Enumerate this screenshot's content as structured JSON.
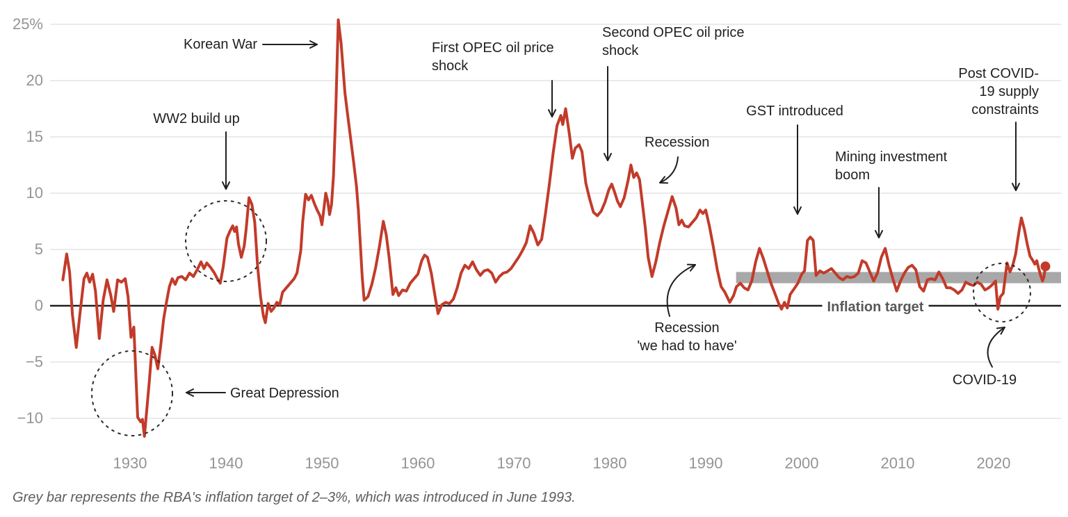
{
  "figure": {
    "footnote": "Grey bar represents the RBA's inflation target of 2–3%, which was introduced in June 1993."
  },
  "annotations": [
    {
      "id": "korean-war",
      "text": "Korean War"
    },
    {
      "id": "ww2-build-up",
      "text": "WW2 build up"
    },
    {
      "id": "first-opec",
      "text": "First OPEC oil price\nshock"
    },
    {
      "id": "second-opec",
      "text": "Second OPEC oil price\nshock"
    },
    {
      "id": "recession-1982",
      "text": "Recession"
    },
    {
      "id": "gst",
      "text": "GST introduced"
    },
    {
      "id": "mining-boom",
      "text": "Mining investment\nboom"
    },
    {
      "id": "post-covid",
      "text": "Post COVID-\n19 supply\nconstraints"
    },
    {
      "id": "great-depression",
      "text": "Great Depression"
    },
    {
      "id": "recession-1991",
      "text": "Recession\n'we had to have'"
    },
    {
      "id": "covid-19",
      "text": "COVID-19"
    },
    {
      "id": "inflation-target",
      "text": "Inflation target"
    }
  ],
  "colors": {
    "line": "#c23b2a",
    "band": "#a8a8a8",
    "grid": "#e4e4e4",
    "zero_line": "#1f1f1f",
    "tick_text": "#949494",
    "annotation_text": "#1f1f1f",
    "target_label_text": "#585858",
    "footnote_text": "#5e5e5e",
    "background": "#ffffff"
  },
  "chart_data": {
    "type": "line",
    "title": "",
    "xlabel": "",
    "ylabel": "",
    "y_unit": "%",
    "grid": "horizontal-only",
    "legend": "none",
    "xlim": [
      1921.7,
      2027
    ],
    "ylim": [
      -13.5,
      27.2
    ],
    "x_ticks": [
      1930,
      1940,
      1950,
      1960,
      1970,
      1980,
      1990,
      2000,
      2010,
      2020
    ],
    "y_ticks": [
      {
        "v": 25,
        "label": "25%"
      },
      {
        "v": 20,
        "label": "20"
      },
      {
        "v": 15,
        "label": "15"
      },
      {
        "v": 10,
        "label": "10"
      },
      {
        "v": 5,
        "label": "5"
      },
      {
        "v": 0,
        "label": "0"
      },
      {
        "v": -5,
        "label": "−5"
      },
      {
        "v": -10,
        "label": "−10"
      }
    ],
    "target_band": {
      "label": "Inflation target",
      "from_year": 1993.45,
      "to_year": 2027,
      "low": 2,
      "high": 3
    },
    "end_dot": {
      "year": 2025.4,
      "value": 3.5
    },
    "points": [
      [
        1923.0,
        2.3
      ],
      [
        1923.4,
        4.6
      ],
      [
        1923.7,
        3.0
      ],
      [
        1924.0,
        -0.8
      ],
      [
        1924.4,
        -3.7
      ],
      [
        1924.8,
        -0.6
      ],
      [
        1925.2,
        2.4
      ],
      [
        1925.5,
        2.9
      ],
      [
        1925.8,
        2.1
      ],
      [
        1926.1,
        2.8
      ],
      [
        1926.4,
        1.3
      ],
      [
        1926.8,
        -2.9
      ],
      [
        1927.2,
        0.5
      ],
      [
        1927.6,
        2.3
      ],
      [
        1928.0,
        0.9
      ],
      [
        1928.3,
        -0.5
      ],
      [
        1928.7,
        2.3
      ],
      [
        1929.1,
        2.1
      ],
      [
        1929.5,
        2.4
      ],
      [
        1929.8,
        0.8
      ],
      [
        1930.1,
        -2.8
      ],
      [
        1930.4,
        -1.9
      ],
      [
        1930.8,
        -9.9
      ],
      [
        1931.1,
        -10.3
      ],
      [
        1931.3,
        -10.1
      ],
      [
        1931.5,
        -11.6
      ],
      [
        1932.0,
        -6.8
      ],
      [
        1932.3,
        -3.7
      ],
      [
        1932.6,
        -4.4
      ],
      [
        1932.9,
        -5.6
      ],
      [
        1933.2,
        -3.5
      ],
      [
        1933.5,
        -1.2
      ],
      [
        1933.8,
        0.3
      ],
      [
        1934.1,
        1.7
      ],
      [
        1934.4,
        2.4
      ],
      [
        1934.7,
        1.9
      ],
      [
        1935.0,
        2.5
      ],
      [
        1935.4,
        2.6
      ],
      [
        1935.8,
        2.3
      ],
      [
        1936.2,
        2.9
      ],
      [
        1936.6,
        2.6
      ],
      [
        1937.0,
        3.2
      ],
      [
        1937.4,
        3.9
      ],
      [
        1937.7,
        3.3
      ],
      [
        1938.0,
        3.8
      ],
      [
        1938.4,
        3.4
      ],
      [
        1938.8,
        2.9
      ],
      [
        1939.1,
        2.4
      ],
      [
        1939.4,
        2.0
      ],
      [
        1939.7,
        3.4
      ],
      [
        1940.1,
        6.0
      ],
      [
        1940.4,
        6.6
      ],
      [
        1940.7,
        7.1
      ],
      [
        1940.9,
        6.6
      ],
      [
        1941.1,
        7.0
      ],
      [
        1941.3,
        5.5
      ],
      [
        1941.6,
        4.3
      ],
      [
        1941.9,
        5.3
      ],
      [
        1942.1,
        6.8
      ],
      [
        1942.4,
        9.6
      ],
      [
        1942.7,
        9.0
      ],
      [
        1943.0,
        7.4
      ],
      [
        1943.3,
        3.5
      ],
      [
        1943.6,
        0.8
      ],
      [
        1943.9,
        -0.9
      ],
      [
        1944.1,
        -1.5
      ],
      [
        1944.4,
        0.2
      ],
      [
        1944.7,
        -0.5
      ],
      [
        1945.0,
        -0.2
      ],
      [
        1945.3,
        0.3
      ],
      [
        1945.6,
        0.1
      ],
      [
        1945.9,
        1.2
      ],
      [
        1946.3,
        1.6
      ],
      [
        1946.7,
        2.0
      ],
      [
        1947.1,
        2.4
      ],
      [
        1947.4,
        2.9
      ],
      [
        1947.8,
        4.9
      ],
      [
        1948.0,
        7.5
      ],
      [
        1948.3,
        9.9
      ],
      [
        1948.6,
        9.4
      ],
      [
        1948.9,
        9.8
      ],
      [
        1949.2,
        9.1
      ],
      [
        1949.5,
        8.5
      ],
      [
        1949.8,
        8.0
      ],
      [
        1950.0,
        7.2
      ],
      [
        1950.2,
        8.6
      ],
      [
        1950.4,
        10.0
      ],
      [
        1950.6,
        9.3
      ],
      [
        1950.8,
        8.1
      ],
      [
        1951.0,
        9.0
      ],
      [
        1951.2,
        11.5
      ],
      [
        1951.45,
        17.5
      ],
      [
        1951.7,
        25.4
      ],
      [
        1952.0,
        23.3
      ],
      [
        1952.4,
        18.9
      ],
      [
        1952.7,
        16.8
      ],
      [
        1953.0,
        14.8
      ],
      [
        1953.3,
        12.8
      ],
      [
        1953.6,
        10.6
      ],
      [
        1953.8,
        8.5
      ],
      [
        1954.0,
        5.5
      ],
      [
        1954.2,
        2.5
      ],
      [
        1954.4,
        0.5
      ],
      [
        1954.8,
        0.8
      ],
      [
        1955.2,
        1.9
      ],
      [
        1955.6,
        3.4
      ],
      [
        1956.0,
        5.3
      ],
      [
        1956.4,
        7.5
      ],
      [
        1956.7,
        6.3
      ],
      [
        1957.0,
        4.3
      ],
      [
        1957.4,
        1.0
      ],
      [
        1957.7,
        1.6
      ],
      [
        1958.0,
        0.9
      ],
      [
        1958.4,
        1.4
      ],
      [
        1958.8,
        1.3
      ],
      [
        1959.2,
        2.0
      ],
      [
        1959.6,
        2.4
      ],
      [
        1960.0,
        2.8
      ],
      [
        1960.4,
        4.0
      ],
      [
        1960.7,
        4.5
      ],
      [
        1961.0,
        4.3
      ],
      [
        1961.4,
        2.9
      ],
      [
        1961.8,
        0.8
      ],
      [
        1962.1,
        -0.7
      ],
      [
        1962.5,
        0.1
      ],
      [
        1962.9,
        0.3
      ],
      [
        1963.3,
        0.2
      ],
      [
        1963.7,
        0.6
      ],
      [
        1964.1,
        1.6
      ],
      [
        1964.5,
        2.9
      ],
      [
        1964.9,
        3.6
      ],
      [
        1965.3,
        3.3
      ],
      [
        1965.7,
        3.9
      ],
      [
        1966.1,
        3.2
      ],
      [
        1966.5,
        2.7
      ],
      [
        1966.9,
        3.1
      ],
      [
        1967.3,
        3.2
      ],
      [
        1967.7,
        2.9
      ],
      [
        1968.1,
        2.1
      ],
      [
        1968.5,
        2.6
      ],
      [
        1968.9,
        2.9
      ],
      [
        1969.3,
        3.0
      ],
      [
        1969.7,
        3.3
      ],
      [
        1970.1,
        3.8
      ],
      [
        1970.5,
        4.3
      ],
      [
        1970.9,
        4.9
      ],
      [
        1971.3,
        5.6
      ],
      [
        1971.7,
        7.1
      ],
      [
        1972.1,
        6.4
      ],
      [
        1972.5,
        5.4
      ],
      [
        1972.9,
        5.9
      ],
      [
        1973.3,
        8.2
      ],
      [
        1973.7,
        10.8
      ],
      [
        1974.1,
        13.6
      ],
      [
        1974.5,
        16.0
      ],
      [
        1974.9,
        16.9
      ],
      [
        1975.1,
        16.1
      ],
      [
        1975.4,
        17.5
      ],
      [
        1975.8,
        15.2
      ],
      [
        1976.1,
        13.1
      ],
      [
        1976.4,
        14.0
      ],
      [
        1976.8,
        14.3
      ],
      [
        1977.1,
        13.7
      ],
      [
        1977.5,
        10.9
      ],
      [
        1977.9,
        9.5
      ],
      [
        1978.3,
        8.3
      ],
      [
        1978.7,
        8.0
      ],
      [
        1979.1,
        8.4
      ],
      [
        1979.5,
        9.2
      ],
      [
        1979.9,
        10.3
      ],
      [
        1980.2,
        10.8
      ],
      [
        1980.5,
        10.1
      ],
      [
        1980.8,
        9.3
      ],
      [
        1981.1,
        8.8
      ],
      [
        1981.5,
        9.6
      ],
      [
        1981.9,
        11.1
      ],
      [
        1982.2,
        12.5
      ],
      [
        1982.5,
        11.4
      ],
      [
        1982.8,
        11.8
      ],
      [
        1983.1,
        11.2
      ],
      [
        1983.4,
        9.1
      ],
      [
        1983.7,
        6.9
      ],
      [
        1984.0,
        4.3
      ],
      [
        1984.4,
        2.6
      ],
      [
        1984.8,
        3.9
      ],
      [
        1985.2,
        5.6
      ],
      [
        1985.6,
        7.0
      ],
      [
        1986.0,
        8.2
      ],
      [
        1986.5,
        9.7
      ],
      [
        1986.9,
        8.7
      ],
      [
        1987.2,
        7.2
      ],
      [
        1987.5,
        7.6
      ],
      [
        1987.8,
        7.1
      ],
      [
        1988.2,
        7.0
      ],
      [
        1988.6,
        7.4
      ],
      [
        1989.0,
        7.8
      ],
      [
        1989.4,
        8.5
      ],
      [
        1989.7,
        8.2
      ],
      [
        1990.0,
        8.5
      ],
      [
        1990.4,
        7.0
      ],
      [
        1990.8,
        5.2
      ],
      [
        1991.2,
        3.2
      ],
      [
        1991.6,
        1.7
      ],
      [
        1992.0,
        1.2
      ],
      [
        1992.5,
        0.3
      ],
      [
        1992.9,
        0.9
      ],
      [
        1993.2,
        1.7
      ],
      [
        1993.6,
        2.0
      ],
      [
        1994.0,
        1.6
      ],
      [
        1994.4,
        1.4
      ],
      [
        1994.8,
        2.2
      ],
      [
        1995.2,
        3.9
      ],
      [
        1995.6,
        5.1
      ],
      [
        1996.0,
        4.2
      ],
      [
        1996.4,
        3.1
      ],
      [
        1996.8,
        2.0
      ],
      [
        1997.2,
        1.1
      ],
      [
        1997.6,
        0.2
      ],
      [
        1997.9,
        -0.3
      ],
      [
        1998.2,
        0.3
      ],
      [
        1998.5,
        -0.2
      ],
      [
        1998.8,
        1.0
      ],
      [
        1999.2,
        1.5
      ],
      [
        1999.6,
        2.0
      ],
      [
        2000.0,
        2.8
      ],
      [
        2000.3,
        3.1
      ],
      [
        2000.6,
        5.8
      ],
      [
        2000.9,
        6.1
      ],
      [
        2001.2,
        5.8
      ],
      [
        2001.5,
        2.7
      ],
      [
        2001.9,
        3.1
      ],
      [
        2002.3,
        2.9
      ],
      [
        2002.7,
        3.1
      ],
      [
        2003.1,
        3.3
      ],
      [
        2003.5,
        2.9
      ],
      [
        2003.9,
        2.5
      ],
      [
        2004.3,
        2.3
      ],
      [
        2004.7,
        2.6
      ],
      [
        2005.1,
        2.5
      ],
      [
        2005.5,
        2.6
      ],
      [
        2005.9,
        2.9
      ],
      [
        2006.3,
        4.0
      ],
      [
        2006.7,
        3.8
      ],
      [
        2007.1,
        3.0
      ],
      [
        2007.5,
        2.2
      ],
      [
        2007.9,
        2.9
      ],
      [
        2008.3,
        4.3
      ],
      [
        2008.7,
        5.1
      ],
      [
        2009.1,
        3.6
      ],
      [
        2009.5,
        2.4
      ],
      [
        2009.9,
        1.3
      ],
      [
        2010.3,
        2.2
      ],
      [
        2010.7,
        2.9
      ],
      [
        2011.1,
        3.4
      ],
      [
        2011.5,
        3.6
      ],
      [
        2011.9,
        3.2
      ],
      [
        2012.3,
        1.7
      ],
      [
        2012.7,
        1.3
      ],
      [
        2013.1,
        2.3
      ],
      [
        2013.5,
        2.4
      ],
      [
        2013.9,
        2.3
      ],
      [
        2014.3,
        3.0
      ],
      [
        2014.7,
        2.4
      ],
      [
        2015.1,
        1.6
      ],
      [
        2015.5,
        1.6
      ],
      [
        2015.9,
        1.4
      ],
      [
        2016.3,
        1.1
      ],
      [
        2016.7,
        1.4
      ],
      [
        2017.1,
        2.1
      ],
      [
        2017.5,
        1.9
      ],
      [
        2017.9,
        1.8
      ],
      [
        2018.3,
        2.1
      ],
      [
        2018.7,
        1.9
      ],
      [
        2019.1,
        1.4
      ],
      [
        2019.5,
        1.6
      ],
      [
        2019.9,
        1.9
      ],
      [
        2020.2,
        2.2
      ],
      [
        2020.45,
        -0.3
      ],
      [
        2020.7,
        0.8
      ],
      [
        2021.0,
        1.1
      ],
      [
        2021.4,
        3.8
      ],
      [
        2021.7,
        3.0
      ],
      [
        2022.0,
        3.6
      ],
      [
        2022.3,
        4.6
      ],
      [
        2022.5,
        5.8
      ],
      [
        2022.7,
        6.9
      ],
      [
        2022.9,
        7.8
      ],
      [
        2023.2,
        6.8
      ],
      [
        2023.5,
        5.5
      ],
      [
        2023.8,
        4.4
      ],
      [
        2024.1,
        4.0
      ],
      [
        2024.3,
        3.7
      ],
      [
        2024.5,
        4.0
      ],
      [
        2024.7,
        3.3
      ],
      [
        2024.9,
        2.7
      ],
      [
        2025.1,
        2.2
      ],
      [
        2025.25,
        2.6
      ],
      [
        2025.4,
        3.5
      ]
    ]
  }
}
